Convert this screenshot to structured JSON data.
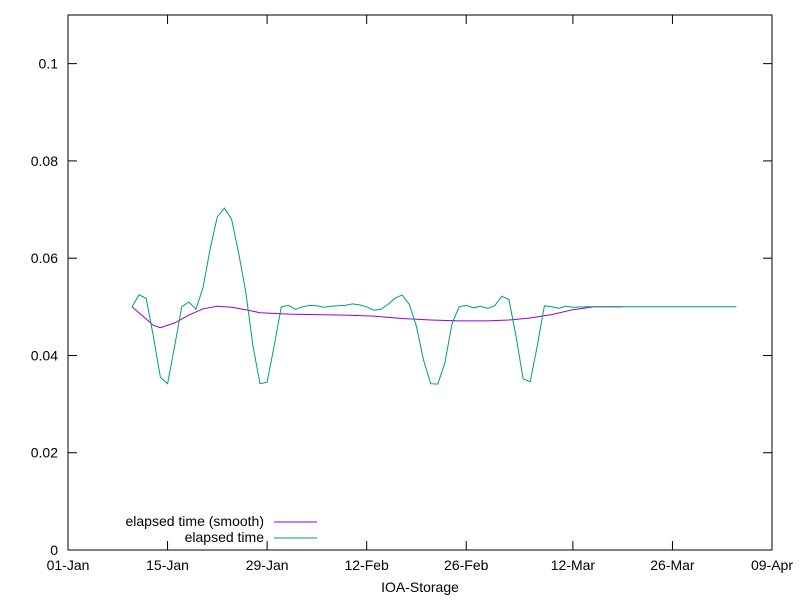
{
  "chart_data": {
    "type": "line",
    "title": "",
    "xlabel": "IOA-Storage",
    "ylabel": "",
    "x_type": "date",
    "x_ticks": [
      "01-Jan",
      "15-Jan",
      "29-Jan",
      "12-Feb",
      "26-Feb",
      "12-Mar",
      "26-Mar",
      "09-Apr"
    ],
    "x_tick_dates": [
      "2024-01-01",
      "2024-01-15",
      "2024-01-29",
      "2024-02-12",
      "2024-02-26",
      "2024-03-12",
      "2024-03-26",
      "2024-04-09"
    ],
    "xlim": [
      "2024-01-01",
      "2024-04-09"
    ],
    "y_ticks": [
      "0",
      "0.02",
      "0.04",
      "0.06",
      "0.08",
      "0.1"
    ],
    "y_tick_values": [
      0,
      0.02,
      0.04,
      0.06,
      0.08,
      0.1
    ],
    "ylim": [
      0,
      0.11
    ],
    "grid": false,
    "legend_position": "bottom-left",
    "series": [
      {
        "name": "elapsed time (smooth)",
        "color": "#9400d3",
        "points": [
          [
            "2024-01-10",
            0.05
          ],
          [
            "2024-01-12",
            0.0475
          ],
          [
            "2024-01-13",
            0.0462
          ],
          [
            "2024-01-14",
            0.0457
          ],
          [
            "2024-01-16",
            0.0467
          ],
          [
            "2024-01-18",
            0.0483
          ],
          [
            "2024-01-20",
            0.0496
          ],
          [
            "2024-01-22",
            0.0501
          ],
          [
            "2024-01-24",
            0.0499
          ],
          [
            "2024-01-26",
            0.0494
          ],
          [
            "2024-01-28",
            0.0488
          ],
          [
            "2024-02-01",
            0.0485
          ],
          [
            "2024-02-05",
            0.0484
          ],
          [
            "2024-02-09",
            0.0483
          ],
          [
            "2024-02-13",
            0.0481
          ],
          [
            "2024-02-17",
            0.0476
          ],
          [
            "2024-02-21",
            0.0473
          ],
          [
            "2024-02-25",
            0.0471
          ],
          [
            "2024-02-29",
            0.0471
          ],
          [
            "2024-03-03",
            0.0473
          ],
          [
            "2024-03-06",
            0.0477
          ],
          [
            "2024-03-09",
            0.0484
          ],
          [
            "2024-03-12",
            0.0494
          ],
          [
            "2024-03-15",
            0.05
          ],
          [
            "2024-03-19",
            0.05
          ]
        ]
      },
      {
        "name": "elapsed time",
        "color": "#009e73",
        "points": [
          [
            "2024-01-10",
            0.05
          ],
          [
            "2024-01-11",
            0.0525
          ],
          [
            "2024-01-12",
            0.0517
          ],
          [
            "2024-01-13",
            0.044
          ],
          [
            "2024-01-14",
            0.0355
          ],
          [
            "2024-01-15",
            0.0342
          ],
          [
            "2024-01-16",
            0.042
          ],
          [
            "2024-01-17",
            0.05
          ],
          [
            "2024-01-18",
            0.051
          ],
          [
            "2024-01-19",
            0.0495
          ],
          [
            "2024-01-20",
            0.054
          ],
          [
            "2024-01-21",
            0.062
          ],
          [
            "2024-01-22",
            0.0685
          ],
          [
            "2024-01-23",
            0.0703
          ],
          [
            "2024-01-24",
            0.068
          ],
          [
            "2024-01-25",
            0.061
          ],
          [
            "2024-01-26",
            0.053
          ],
          [
            "2024-01-27",
            0.042
          ],
          [
            "2024-01-28",
            0.0342
          ],
          [
            "2024-01-29",
            0.0345
          ],
          [
            "2024-01-30",
            0.042
          ],
          [
            "2024-01-31",
            0.05
          ],
          [
            "2024-02-01",
            0.0503
          ],
          [
            "2024-02-02",
            0.0495
          ],
          [
            "2024-02-03",
            0.05
          ],
          [
            "2024-02-04",
            0.0503
          ],
          [
            "2024-02-05",
            0.0502
          ],
          [
            "2024-02-06",
            0.0499
          ],
          [
            "2024-02-07",
            0.0501
          ],
          [
            "2024-02-08",
            0.0502
          ],
          [
            "2024-02-09",
            0.0503
          ],
          [
            "2024-02-10",
            0.0506
          ],
          [
            "2024-02-11",
            0.0504
          ],
          [
            "2024-02-12",
            0.05
          ],
          [
            "2024-02-13",
            0.0493
          ],
          [
            "2024-02-14",
            0.0495
          ],
          [
            "2024-02-15",
            0.0505
          ],
          [
            "2024-02-16",
            0.0518
          ],
          [
            "2024-02-17",
            0.0524
          ],
          [
            "2024-02-18",
            0.0505
          ],
          [
            "2024-02-19",
            0.046
          ],
          [
            "2024-02-20",
            0.039
          ],
          [
            "2024-02-21",
            0.0342
          ],
          [
            "2024-02-22",
            0.0341
          ],
          [
            "2024-02-23",
            0.0385
          ],
          [
            "2024-02-24",
            0.0465
          ],
          [
            "2024-02-25",
            0.05
          ],
          [
            "2024-02-26",
            0.0503
          ],
          [
            "2024-02-27",
            0.0498
          ],
          [
            "2024-02-28",
            0.0501
          ],
          [
            "2024-02-29",
            0.0497
          ],
          [
            "2024-03-01",
            0.0502
          ],
          [
            "2024-03-02",
            0.0522
          ],
          [
            "2024-03-03",
            0.0515
          ],
          [
            "2024-03-04",
            0.044
          ],
          [
            "2024-03-05",
            0.0352
          ],
          [
            "2024-03-06",
            0.0346
          ],
          [
            "2024-03-07",
            0.042
          ],
          [
            "2024-03-08",
            0.0502
          ],
          [
            "2024-03-09",
            0.05
          ],
          [
            "2024-03-10",
            0.0497
          ],
          [
            "2024-03-11",
            0.0501
          ],
          [
            "2024-03-12",
            0.0499
          ],
          [
            "2024-03-14",
            0.05
          ],
          [
            "2024-03-18",
            0.05
          ],
          [
            "2024-03-24",
            0.05
          ],
          [
            "2024-03-30",
            0.05
          ],
          [
            "2024-04-04",
            0.05
          ]
        ]
      }
    ]
  }
}
